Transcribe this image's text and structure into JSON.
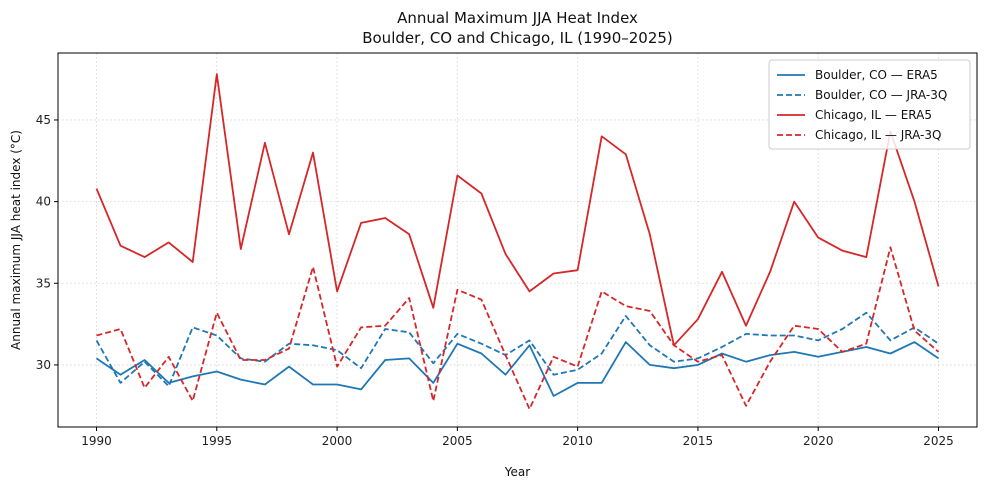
{
  "chart_data": {
    "type": "line",
    "title_line1": "Annual Maximum JJA Heat Index",
    "title_line2": "Boulder, CO and Chicago, IL (1990–2025)",
    "xlabel": "Year",
    "ylabel": "Annual maximum JJA heat index (°C)",
    "xlim": [
      1988.4,
      2026.6
    ],
    "ylim": [
      26.2,
      49.1
    ],
    "xticks": [
      1990,
      1995,
      2000,
      2005,
      2010,
      2015,
      2020,
      2025
    ],
    "yticks": [
      30,
      35,
      40,
      45
    ],
    "grid": true,
    "legend_position": "top-right",
    "x": [
      1990,
      1991,
      1992,
      1993,
      1994,
      1995,
      1996,
      1997,
      1998,
      1999,
      2000,
      2001,
      2002,
      2003,
      2004,
      2005,
      2006,
      2007,
      2008,
      2009,
      2010,
      2011,
      2012,
      2013,
      2014,
      2015,
      2016,
      2017,
      2018,
      2019,
      2020,
      2021,
      2022,
      2023,
      2024,
      2025
    ],
    "series": [
      {
        "name": "Boulder, CO — ERA5",
        "color": "#1f77b4",
        "dash": "solid",
        "values": [
          30.4,
          29.4,
          30.3,
          28.9,
          29.3,
          29.6,
          29.1,
          28.8,
          29.9,
          28.8,
          28.8,
          28.5,
          30.3,
          30.4,
          28.9,
          31.3,
          30.7,
          29.4,
          31.2,
          28.1,
          28.9,
          28.9,
          31.4,
          30.0,
          29.8,
          30.0,
          30.7,
          30.2,
          30.6,
          30.8,
          30.5,
          30.8,
          31.1,
          30.7,
          31.4,
          30.4
        ]
      },
      {
        "name": "Boulder, CO — JRA-3Q",
        "color": "#1f77b4",
        "dash": "dashed",
        "values": [
          31.5,
          28.9,
          30.2,
          28.7,
          32.3,
          31.8,
          30.4,
          30.2,
          31.3,
          31.2,
          30.9,
          29.8,
          32.2,
          32.0,
          30.1,
          31.9,
          31.3,
          30.6,
          31.5,
          29.4,
          29.7,
          30.7,
          33.0,
          31.2,
          30.2,
          30.4,
          31.1,
          31.9,
          31.8,
          31.8,
          31.5,
          32.2,
          33.2,
          31.5,
          32.3,
          31.3
        ]
      },
      {
        "name": "Chicago, IL — ERA5",
        "color": "#d62728",
        "dash": "solid",
        "values": [
          40.8,
          37.3,
          36.6,
          37.5,
          36.3,
          47.8,
          37.1,
          43.6,
          38.0,
          43.0,
          34.5,
          38.7,
          39.0,
          38.0,
          33.5,
          41.6,
          40.5,
          36.8,
          34.5,
          35.6,
          35.8,
          44.0,
          42.9,
          38.0,
          31.2,
          32.8,
          35.7,
          32.4,
          35.7,
          40.0,
          37.8,
          37.0,
          36.6,
          44.3,
          40.0,
          34.8
        ]
      },
      {
        "name": "Chicago, IL — JRA-3Q",
        "color": "#d62728",
        "dash": "dashed",
        "values": [
          31.8,
          32.2,
          28.6,
          30.5,
          27.8,
          33.2,
          30.3,
          30.3,
          31.0,
          36.0,
          29.9,
          32.3,
          32.4,
          34.1,
          27.8,
          34.6,
          34.0,
          30.6,
          27.3,
          30.5,
          29.9,
          34.5,
          33.6,
          33.3,
          31.2,
          30.2,
          30.6,
          27.5,
          30.2,
          32.4,
          32.2,
          30.8,
          31.3,
          37.2,
          32.1,
          30.8
        ]
      }
    ]
  }
}
